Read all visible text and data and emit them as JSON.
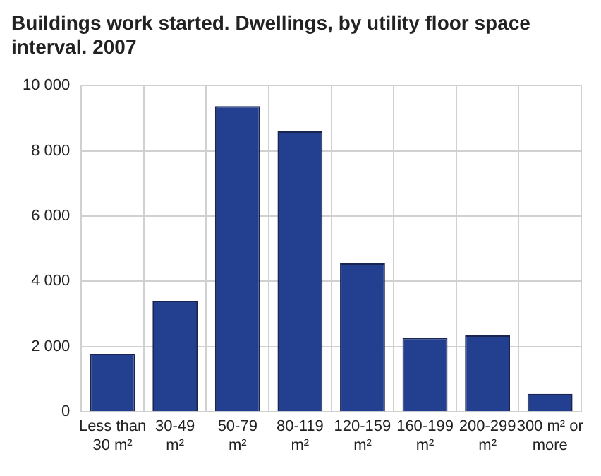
{
  "chart_data": {
    "type": "bar",
    "title": "Buildings work started. Dwellings, by utility floor space interval. 2007",
    "categories": [
      "Less than 30 m²",
      "30-49 m²",
      "50-79 m²",
      "80-119 m²",
      "120-159 m²",
      "160-199 m²",
      "200-299 m²",
      "300 m² or more"
    ],
    "values": [
      1780,
      3400,
      9370,
      8600,
      4550,
      2270,
      2340,
      550
    ],
    "color": "#233f8f",
    "ylim": [
      0,
      10000
    ],
    "yticks": [
      {
        "value": 0,
        "label": "0"
      },
      {
        "value": 2000,
        "label": "2 000"
      },
      {
        "value": 4000,
        "label": "4 000"
      },
      {
        "value": 6000,
        "label": "6 000"
      },
      {
        "value": 8000,
        "label": "8 000"
      },
      {
        "value": 10000,
        "label": "10 000"
      }
    ],
    "grid": true
  }
}
